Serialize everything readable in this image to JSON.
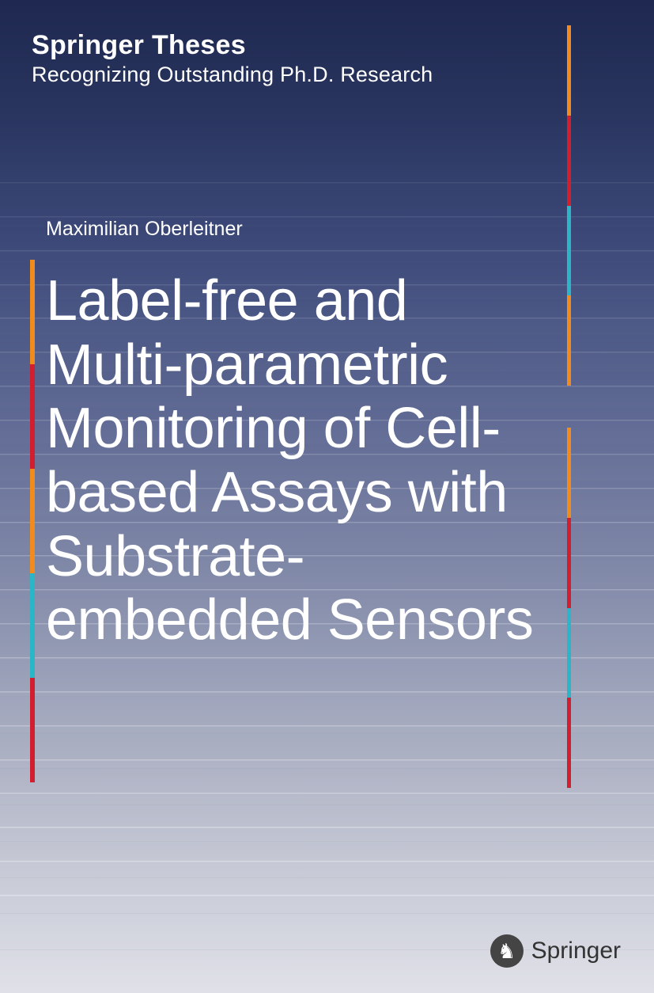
{
  "series": {
    "title": "Springer Theses",
    "subtitle": "Recognizing Outstanding Ph.D. Research"
  },
  "author": "Maximilian Oberleitner",
  "title": "Label-free and Multi-parametric Monitoring of Cell-based Assays with Substrate-embedded Sensors",
  "publisher": {
    "name": "Springer",
    "logo_symbol": "♞"
  },
  "stripes": {
    "left": [
      "#f08c1e",
      "#d11f2f",
      "#f08c1e",
      "#2bb6c7",
      "#d11f2f"
    ],
    "right_top": [
      "#f08c1e",
      "#d11f2f",
      "#2bb6c7",
      "#f08c1e"
    ],
    "right_bottom": [
      "#f08c1e",
      "#d11f2f",
      "#2bb6c7",
      "#d11f2f"
    ]
  },
  "background": {
    "gradient_start": "#1e2850",
    "gradient_end": "#e0e1e8",
    "step_count": 22
  }
}
